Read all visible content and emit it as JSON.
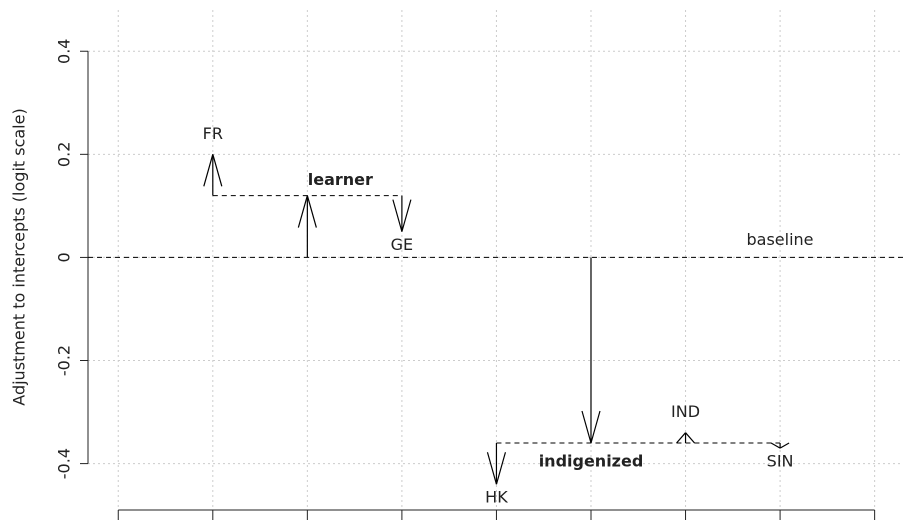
{
  "chart_data": {
    "type": "arrow",
    "y_label": "Adjustment to intercepts (logit scale)",
    "xlim": [
      0.68,
      9.3
    ],
    "xticks": [
      1,
      2,
      3,
      4,
      5,
      6,
      7,
      8,
      9
    ],
    "ylim": [
      -0.49,
      0.48
    ],
    "yticks": [
      -0.4,
      -0.2,
      0.0,
      0.2,
      0.4
    ],
    "grid": true,
    "color": "#000000",
    "baseline": {
      "label": "baseline",
      "value": 0
    },
    "groups": [
      {
        "name": "learner",
        "x": 3,
        "value": 0.12,
        "varieties": [
          {
            "name": "FR",
            "x": 2,
            "value": 0.08
          },
          {
            "name": "GE",
            "x": 4,
            "value": -0.07
          }
        ]
      },
      {
        "name": "indigenized",
        "x": 6,
        "value": -0.36,
        "varieties": [
          {
            "name": "HK",
            "x": 5,
            "value": -0.08
          },
          {
            "name": "IND",
            "x": 7,
            "value": 0.02
          },
          {
            "name": "SIN",
            "x": 8,
            "value": -0.01
          }
        ]
      }
    ]
  }
}
